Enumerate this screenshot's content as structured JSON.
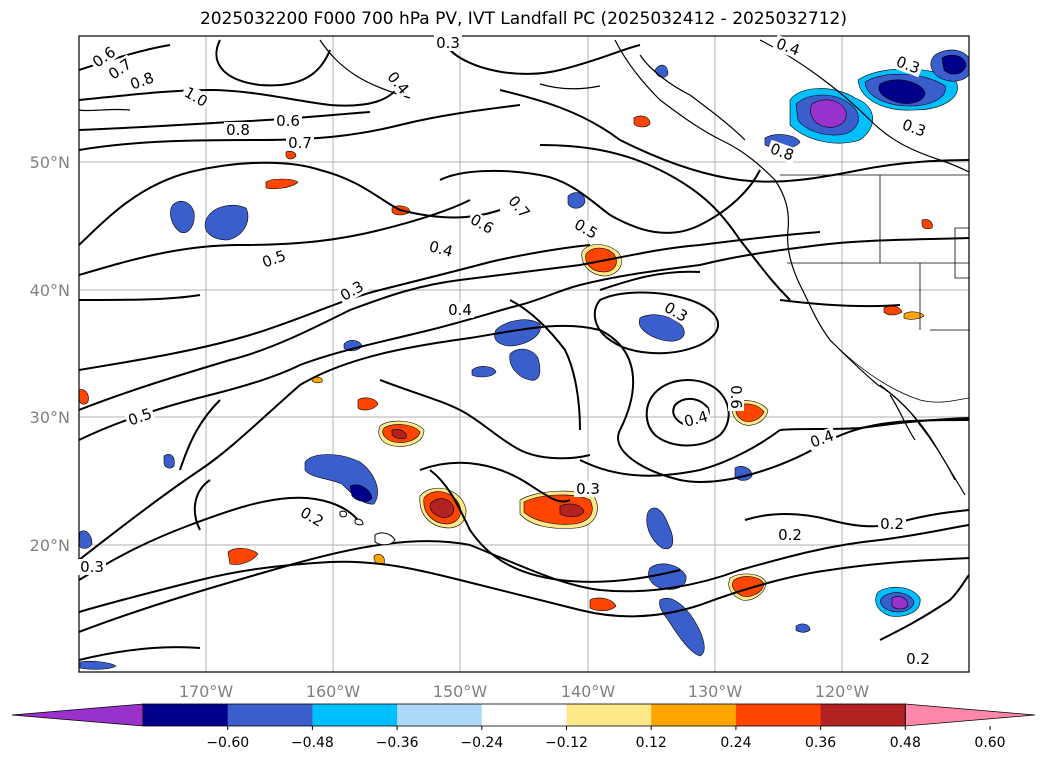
{
  "title": "2025032200 F000 700 hPa PV, IVT Landfall PC (2025032412 - 2025032712)",
  "lat_ticks": [
    "50°N",
    "40°N",
    "30°N",
    "20°N"
  ],
  "lon_ticks": [
    "170°W",
    "160°W",
    "150°W",
    "140°W",
    "130°W",
    "120°W"
  ],
  "contour_labels": [
    "0.6",
    "0.7",
    "0.8",
    "1.0",
    "0.8",
    "0.7",
    "0.6",
    "0.3",
    "0.4",
    "0.4",
    "0.3",
    "0.3",
    "0.8",
    "0.7",
    "0.6",
    "0.5",
    "0.5",
    "0.4",
    "0.3",
    "0.4",
    "0.3",
    "0.5",
    "0.6",
    "0.4",
    "0.4",
    "0.3",
    "0.2",
    "0.2",
    "0.2",
    "0.3",
    "0.2"
  ],
  "colorbar": {
    "ticks": [
      "−0.60",
      "−0.48",
      "−0.36",
      "−0.24",
      "−0.12",
      "0.12",
      "0.24",
      "0.36",
      "0.48",
      "0.60"
    ],
    "colors": [
      "#9932CC",
      "#00008B",
      "#3A5FCD",
      "#00BFFF",
      "#ADD8F7",
      "#FFFFFF",
      "#FFE88A",
      "#FFA500",
      "#FF4500",
      "#B22222",
      "#FF88AA"
    ]
  },
  "fill_colors": {
    "blue_light": "#00BFFF",
    "blue_mid": "#3A5FCD",
    "blue_dark": "#00008B",
    "purple": "#9932CC",
    "yellow": "#FFE88A",
    "orange": "#FFA500",
    "red": "#FF4500",
    "darkred": "#B22222"
  }
}
